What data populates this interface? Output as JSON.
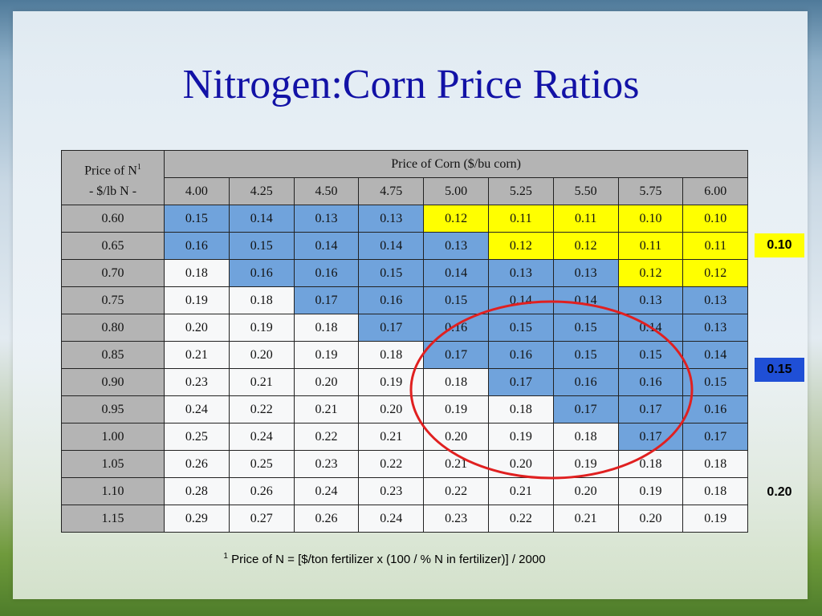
{
  "title": "Nitrogen:Corn Price Ratios",
  "table": {
    "header_col_line1": "Price of N",
    "header_col_sup": "1",
    "header_col_line2": "- $/lb N -",
    "header_group": "Price of Corn ($/bu corn)",
    "corn_prices": [
      "4.00",
      "4.25",
      "4.50",
      "4.75",
      "5.00",
      "5.25",
      "5.50",
      "5.75",
      "6.00"
    ],
    "rows": [
      {
        "n_price": "0.60",
        "ratios": [
          "0.15",
          "0.14",
          "0.13",
          "0.13",
          "0.12",
          "0.11",
          "0.11",
          "0.10",
          "0.10"
        ],
        "colors": [
          "blue",
          "blue",
          "blue",
          "blue",
          "yellow",
          "yellow",
          "yellow",
          "yellow",
          "yellow"
        ]
      },
      {
        "n_price": "0.65",
        "ratios": [
          "0.16",
          "0.15",
          "0.14",
          "0.14",
          "0.13",
          "0.12",
          "0.12",
          "0.11",
          "0.11"
        ],
        "colors": [
          "blue",
          "blue",
          "blue",
          "blue",
          "blue",
          "yellow",
          "yellow",
          "yellow",
          "yellow"
        ]
      },
      {
        "n_price": "0.70",
        "ratios": [
          "0.18",
          "0.16",
          "0.16",
          "0.15",
          "0.14",
          "0.13",
          "0.13",
          "0.12",
          "0.12"
        ],
        "colors": [
          "white",
          "blue",
          "blue",
          "blue",
          "blue",
          "blue",
          "blue",
          "yellow",
          "yellow"
        ]
      },
      {
        "n_price": "0.75",
        "ratios": [
          "0.19",
          "0.18",
          "0.17",
          "0.16",
          "0.15",
          "0.14",
          "0.14",
          "0.13",
          "0.13"
        ],
        "colors": [
          "white",
          "white",
          "blue",
          "blue",
          "blue",
          "blue",
          "blue",
          "blue",
          "blue"
        ]
      },
      {
        "n_price": "0.80",
        "ratios": [
          "0.20",
          "0.19",
          "0.18",
          "0.17",
          "0.16",
          "0.15",
          "0.15",
          "0.14",
          "0.13"
        ],
        "colors": [
          "white",
          "white",
          "white",
          "blue",
          "blue",
          "blue",
          "blue",
          "blue",
          "blue"
        ]
      },
      {
        "n_price": "0.85",
        "ratios": [
          "0.21",
          "0.20",
          "0.19",
          "0.18",
          "0.17",
          "0.16",
          "0.15",
          "0.15",
          "0.14"
        ],
        "colors": [
          "white",
          "white",
          "white",
          "white",
          "blue",
          "blue",
          "blue",
          "blue",
          "blue"
        ]
      },
      {
        "n_price": "0.90",
        "ratios": [
          "0.23",
          "0.21",
          "0.20",
          "0.19",
          "0.18",
          "0.17",
          "0.16",
          "0.16",
          "0.15"
        ],
        "colors": [
          "white",
          "white",
          "white",
          "white",
          "white",
          "blue",
          "blue",
          "blue",
          "blue"
        ]
      },
      {
        "n_price": "0.95",
        "ratios": [
          "0.24",
          "0.22",
          "0.21",
          "0.20",
          "0.19",
          "0.18",
          "0.17",
          "0.17",
          "0.16"
        ],
        "colors": [
          "white",
          "white",
          "white",
          "white",
          "white",
          "white",
          "blue",
          "blue",
          "blue"
        ]
      },
      {
        "n_price": "1.00",
        "ratios": [
          "0.25",
          "0.24",
          "0.22",
          "0.21",
          "0.20",
          "0.19",
          "0.18",
          "0.17",
          "0.17"
        ],
        "colors": [
          "white",
          "white",
          "white",
          "white",
          "white",
          "white",
          "white",
          "blue",
          "blue"
        ]
      },
      {
        "n_price": "1.05",
        "ratios": [
          "0.26",
          "0.25",
          "0.23",
          "0.22",
          "0.21",
          "0.20",
          "0.19",
          "0.18",
          "0.18"
        ],
        "colors": [
          "white",
          "white",
          "white",
          "white",
          "white",
          "white",
          "white",
          "white",
          "white"
        ]
      },
      {
        "n_price": "1.10",
        "ratios": [
          "0.28",
          "0.26",
          "0.24",
          "0.23",
          "0.22",
          "0.21",
          "0.20",
          "0.19",
          "0.18"
        ],
        "colors": [
          "white",
          "white",
          "white",
          "white",
          "white",
          "white",
          "white",
          "white",
          "white"
        ]
      },
      {
        "n_price": "1.15",
        "ratios": [
          "0.29",
          "0.27",
          "0.26",
          "0.24",
          "0.23",
          "0.22",
          "0.21",
          "0.20",
          "0.19"
        ],
        "colors": [
          "white",
          "white",
          "white",
          "white",
          "white",
          "white",
          "white",
          "white",
          "white"
        ]
      }
    ]
  },
  "legend": {
    "yellow_label": "0.10",
    "blue_label": "0.15",
    "plain_label": "0.20"
  },
  "footnote": {
    "sup": "1",
    "text": " Price of N = [$/ton fertilizer x (100 / % N in fertilizer)] / 2000"
  },
  "colors": {
    "title": "#1212a6",
    "gray": "#b4b4b4",
    "blue": "#70a3dc",
    "yellow": "#ffff00",
    "legend_blue": "#1f4fd6",
    "circle": "#e02020"
  }
}
